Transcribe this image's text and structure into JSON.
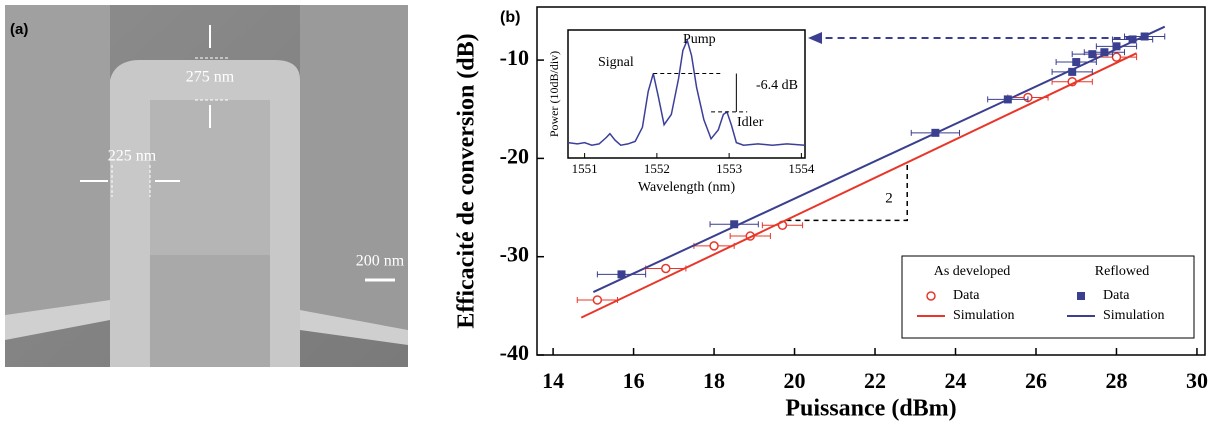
{
  "panel_a": {
    "label": "(a)",
    "top_width": "275 nm",
    "side_width": "225 nm",
    "scale_bar": "200 nm"
  },
  "chart_data": [
    {
      "type": "scatter",
      "panel_label": "(b)",
      "xlabel": "Puissance (dBm)",
      "ylabel": "Efficacité de conversion (dB)",
      "xlim": [
        13.6,
        30.2
      ],
      "ylim": [
        -40,
        -4.6
      ],
      "xticks": [
        14,
        16,
        18,
        20,
        22,
        24,
        26,
        28,
        30
      ],
      "yticks": [
        -40,
        -30,
        -20,
        -10
      ],
      "legend_groups": [
        "As developed",
        "Reflowed"
      ],
      "slope_label": "2",
      "series": [
        {
          "name": "Data",
          "group": 0,
          "mode": "markers",
          "marker": "circle-open",
          "color": "#e8372a",
          "x": [
            15.1,
            16.8,
            18.0,
            18.9,
            19.7,
            25.8,
            26.9,
            28.0
          ],
          "values": [
            -34.4,
            -31.2,
            -28.9,
            -27.9,
            -26.8,
            -13.8,
            -12.2,
            -9.7
          ],
          "xerr": [
            0.5,
            0.5,
            0.5,
            0.5,
            0.5,
            0.5,
            0.5,
            0.5
          ]
        },
        {
          "name": "Simulation",
          "group": 0,
          "mode": "line",
          "color": "#e8372a",
          "x": [
            14.7,
            28.5
          ],
          "values": [
            -36.2,
            -9.3
          ]
        },
        {
          "name": "Data",
          "group": 1,
          "mode": "markers",
          "marker": "square",
          "color": "#3a3f8f",
          "x": [
            15.7,
            18.5,
            23.5,
            25.3,
            26.9,
            27.0,
            27.4,
            27.7,
            28.0,
            28.4,
            28.7
          ],
          "values": [
            -31.8,
            -26.7,
            -17.4,
            -14.0,
            -11.2,
            -10.2,
            -9.4,
            -9.2,
            -8.6,
            -7.9,
            -7.6
          ],
          "xerr": [
            0.6,
            0.6,
            0.6,
            0.5,
            0.5,
            0.5,
            0.5,
            0.5,
            0.5,
            0.5,
            0.5
          ]
        },
        {
          "name": "Simulation",
          "group": 1,
          "mode": "line",
          "color": "#3a3f8f",
          "x": [
            15.0,
            29.2
          ],
          "values": [
            -33.6,
            -6.6
          ]
        }
      ]
    },
    {
      "type": "line",
      "xlabel": "Wavelength (nm)",
      "ylabel": "Power (10dB/div)",
      "xlim": [
        1550.77,
        1554.05
      ],
      "ylim": [
        0,
        100
      ],
      "xticks": [
        1551,
        1552,
        1553,
        1554
      ],
      "annotations": [
        "Signal",
        "Pump",
        "Idler",
        "-6.4 dB"
      ],
      "series": [
        {
          "color": "#3c3f9a",
          "x": [
            1550.77,
            1550.9,
            1551.0,
            1551.1,
            1551.2,
            1551.3,
            1551.35,
            1551.42,
            1551.5,
            1551.6,
            1551.7,
            1551.8,
            1551.88,
            1551.95,
            1552.02,
            1552.1,
            1552.2,
            1552.3,
            1552.36,
            1552.42,
            1552.48,
            1552.55,
            1552.65,
            1552.75,
            1552.85,
            1552.92,
            1552.97,
            1553.03,
            1553.1,
            1553.2,
            1553.4,
            1553.6,
            1553.8,
            1554.05
          ],
          "values": [
            12,
            11,
            12,
            10,
            11,
            16,
            19,
            14,
            10,
            11,
            13,
            24,
            52,
            66,
            48,
            26,
            34,
            62,
            84,
            92,
            80,
            55,
            30,
            15,
            22,
            34,
            36,
            26,
            12,
            10,
            11,
            10,
            11,
            10
          ]
        }
      ]
    }
  ]
}
